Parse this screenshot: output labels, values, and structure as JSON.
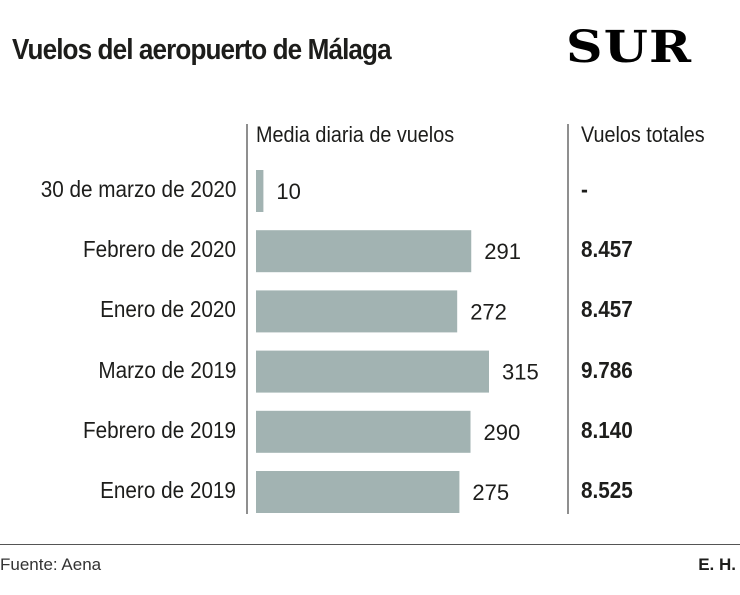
{
  "header": {
    "title": "Vuelos del aeropuerto de Málaga",
    "logo": "SUR"
  },
  "columns": {
    "bars_header": "Media diaria de vuelos",
    "totals_header": "Vuelos totales"
  },
  "footer": {
    "source": "Fuente: Aena",
    "author": "E. H."
  },
  "colors": {
    "bar": "#a2b3b2",
    "text": "#1d1d1b",
    "divider": "#8f8f8f"
  },
  "chart_data": {
    "type": "bar",
    "orientation": "horizontal",
    "title": "Vuelos del aeropuerto de Málaga",
    "categories": [
      "30 de marzo de 2020",
      "Febrero de 2020",
      "Enero de 2020",
      "Marzo de 2019",
      "Febrero de 2019",
      "Enero de 2019"
    ],
    "series": [
      {
        "name": "Media diaria de vuelos",
        "values": [
          10,
          291,
          272,
          315,
          290,
          275
        ]
      }
    ],
    "totals": {
      "name": "Vuelos totales",
      "values": [
        "-",
        "8.457",
        "8.457",
        "9.786",
        "8.140",
        "8.525"
      ]
    },
    "xlim": [
      0,
      315
    ],
    "grid": false,
    "legend": "none"
  }
}
